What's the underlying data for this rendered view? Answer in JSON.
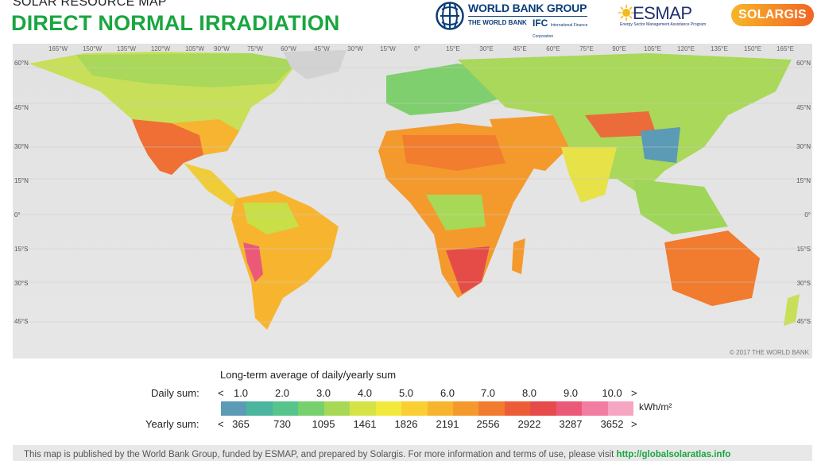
{
  "header": {
    "supertitle": "SOLAR RESOURCE MAP",
    "title": "DIRECT NORMAL IRRADIATION"
  },
  "logos": {
    "wbg_name": "WORLD BANK GROUP",
    "wbg_sub1": "THE WORLD BANK",
    "wbg_sub2": "IFC",
    "wbg_sub2_small": "International Finance Corporation",
    "esmap": "ESMAP",
    "esmap_tag": "Energy Sector Management Assistance Program",
    "solargis": "SOLARGIS"
  },
  "map": {
    "longitudes": [
      "165°W",
      "150°W",
      "135°W",
      "120°W",
      "105°W",
      "90°W",
      "75°W",
      "60°W",
      "45°W",
      "30°W",
      "15°W",
      "0°",
      "15°E",
      "30°E",
      "45°E",
      "60°E",
      "75°E",
      "90°E",
      "105°E",
      "120°E",
      "135°E",
      "150°E",
      "165°E"
    ],
    "latitudes": [
      "60°N",
      "45°N",
      "30°N",
      "15°N",
      "0°",
      "15°S",
      "30°S",
      "45°S"
    ],
    "copyright": "© 2017 THE WORLD BANK"
  },
  "legend": {
    "caption": "Long-term average of daily/yearly sum",
    "daily_label": "Daily sum:",
    "yearly_label": "Yearly sum:",
    "lt": "<",
    "gt": ">",
    "daily_ticks": [
      "1.0",
      "2.0",
      "3.0",
      "4.0",
      "5.0",
      "6.0",
      "7.0",
      "8.0",
      "9.0",
      "10.0"
    ],
    "yearly_ticks": [
      "365",
      "730",
      "1095",
      "1461",
      "1826",
      "2191",
      "2556",
      "2922",
      "3287",
      "3652"
    ],
    "unit": "kWh/m²",
    "colors": [
      "#5b9bb5",
      "#4bb59f",
      "#56c48c",
      "#78cf6e",
      "#a7d956",
      "#d6e347",
      "#f3e93c",
      "#f9cf33",
      "#f7b52f",
      "#f49a2d",
      "#f17b2e",
      "#ec5d37",
      "#e64a4a",
      "#ea5a78",
      "#f17ea2",
      "#f6a6c3"
    ]
  },
  "footer": {
    "text": "This map is published by the World Bank Group, funded by ESMAP, and prepared by Solargis. For more information and terms of use, please visit ",
    "link": "http://globalsolaratlas.info"
  }
}
